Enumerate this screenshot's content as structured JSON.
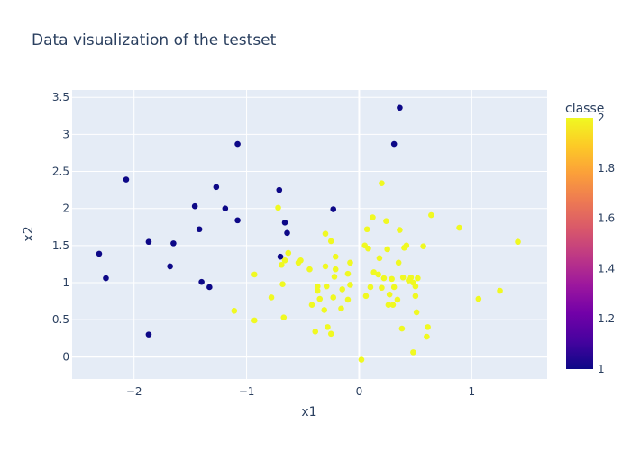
{
  "chart_data": {
    "type": "scatter",
    "title": "Data visualization of the testset",
    "xlabel": "x1",
    "ylabel": "x2",
    "xlim": [
      -2.55,
      1.67
    ],
    "ylim": [
      -0.3,
      3.6
    ],
    "xticks": [
      -2,
      -1,
      0,
      1
    ],
    "yticks": [
      0,
      0.5,
      1,
      1.5,
      2,
      2.5,
      3,
      3.5
    ],
    "xtick_labels": [
      "−2",
      "−1",
      "0",
      "1"
    ],
    "ytick_labels": [
      "0",
      "0.5",
      "1",
      "1.5",
      "2",
      "2.5",
      "3",
      "3.5"
    ],
    "grid": true,
    "background": "#e5ecf6",
    "colorbar": {
      "title": "classe",
      "range": [
        1,
        2
      ],
      "ticks": [
        1,
        1.2,
        1.4,
        1.6,
        1.8,
        2
      ],
      "tick_labels": [
        "1",
        "1.2",
        "1.4",
        "1.6",
        "1.8",
        "2"
      ],
      "colorscale": [
        "#0d0887",
        "#46039f",
        "#7201a8",
        "#9c179e",
        "#bd3786",
        "#d8576b",
        "#ed7953",
        "#fb9f3a",
        "#fdca26",
        "#f0f921"
      ]
    },
    "series": [
      {
        "classe": 1,
        "color": "#0d0887",
        "points": [
          [
            0.36,
            3.36
          ],
          [
            0.31,
            2.87
          ],
          [
            -1.08,
            2.87
          ],
          [
            -2.07,
            2.39
          ],
          [
            -1.27,
            2.29
          ],
          [
            -0.71,
            2.25
          ],
          [
            -0.23,
            1.99
          ],
          [
            -1.46,
            2.03
          ],
          [
            -1.19,
            2.0
          ],
          [
            -1.08,
            1.84
          ],
          [
            -0.66,
            1.81
          ],
          [
            -1.42,
            1.72
          ],
          [
            -0.64,
            1.67
          ],
          [
            -1.87,
            1.55
          ],
          [
            -1.65,
            1.53
          ],
          [
            -2.31,
            1.39
          ],
          [
            -0.7,
            1.35
          ],
          [
            -1.68,
            1.22
          ],
          [
            -2.25,
            1.06
          ],
          [
            -1.4,
            1.01
          ],
          [
            -1.33,
            0.94
          ],
          [
            -1.87,
            0.3
          ]
        ]
      },
      {
        "classe": 2,
        "color": "#f0f921",
        "points": [
          [
            0.2,
            2.34
          ],
          [
            -0.72,
            2.01
          ],
          [
            0.12,
            1.88
          ],
          [
            0.64,
            1.91
          ],
          [
            0.24,
            1.83
          ],
          [
            0.07,
            1.72
          ],
          [
            0.36,
            1.71
          ],
          [
            0.89,
            1.74
          ],
          [
            -0.3,
            1.66
          ],
          [
            -0.25,
            1.56
          ],
          [
            0.05,
            1.5
          ],
          [
            0.08,
            1.46
          ],
          [
            0.42,
            1.5
          ],
          [
            0.4,
            1.47
          ],
          [
            0.57,
            1.49
          ],
          [
            1.41,
            1.55
          ],
          [
            0.25,
            1.45
          ],
          [
            -0.63,
            1.4
          ],
          [
            -0.21,
            1.35
          ],
          [
            0.18,
            1.33
          ],
          [
            -0.66,
            1.3
          ],
          [
            -0.52,
            1.3
          ],
          [
            -0.54,
            1.27
          ],
          [
            0.35,
            1.27
          ],
          [
            -0.08,
            1.27
          ],
          [
            -0.69,
            1.24
          ],
          [
            -0.3,
            1.22
          ],
          [
            -0.21,
            1.18
          ],
          [
            -0.44,
            1.18
          ],
          [
            0.13,
            1.14
          ],
          [
            -0.1,
            1.12
          ],
          [
            -0.93,
            1.11
          ],
          [
            0.17,
            1.11
          ],
          [
            -0.22,
            1.08
          ],
          [
            0.22,
            1.06
          ],
          [
            0.39,
            1.07
          ],
          [
            0.46,
            1.07
          ],
          [
            0.52,
            1.06
          ],
          [
            0.29,
            1.05
          ],
          [
            0.44,
            1.03
          ],
          [
            0.48,
            1.0
          ],
          [
            -0.08,
            0.97
          ],
          [
            -0.68,
            0.98
          ],
          [
            -0.37,
            0.95
          ],
          [
            -0.29,
            0.95
          ],
          [
            0.2,
            0.93
          ],
          [
            0.1,
            0.94
          ],
          [
            0.31,
            0.94
          ],
          [
            0.5,
            0.95
          ],
          [
            -0.15,
            0.91
          ],
          [
            -0.37,
            0.89
          ],
          [
            0.27,
            0.84
          ],
          [
            0.06,
            0.82
          ],
          [
            0.5,
            0.82
          ],
          [
            -0.78,
            0.8
          ],
          [
            -0.23,
            0.8
          ],
          [
            -0.35,
            0.78
          ],
          [
            -0.1,
            0.77
          ],
          [
            0.34,
            0.77
          ],
          [
            0.26,
            0.7
          ],
          [
            0.3,
            0.7
          ],
          [
            -0.42,
            0.7
          ],
          [
            -0.16,
            0.65
          ],
          [
            -1.11,
            0.62
          ],
          [
            -0.31,
            0.63
          ],
          [
            0.51,
            0.6
          ],
          [
            -0.67,
            0.53
          ],
          [
            -0.93,
            0.49
          ],
          [
            0.61,
            0.4
          ],
          [
            -0.28,
            0.4
          ],
          [
            0.38,
            0.38
          ],
          [
            -0.39,
            0.34
          ],
          [
            -0.25,
            0.31
          ],
          [
            0.6,
            0.27
          ],
          [
            0.48,
            0.06
          ],
          [
            0.02,
            -0.04
          ],
          [
            1.06,
            0.78
          ],
          [
            1.25,
            0.89
          ]
        ]
      }
    ]
  }
}
